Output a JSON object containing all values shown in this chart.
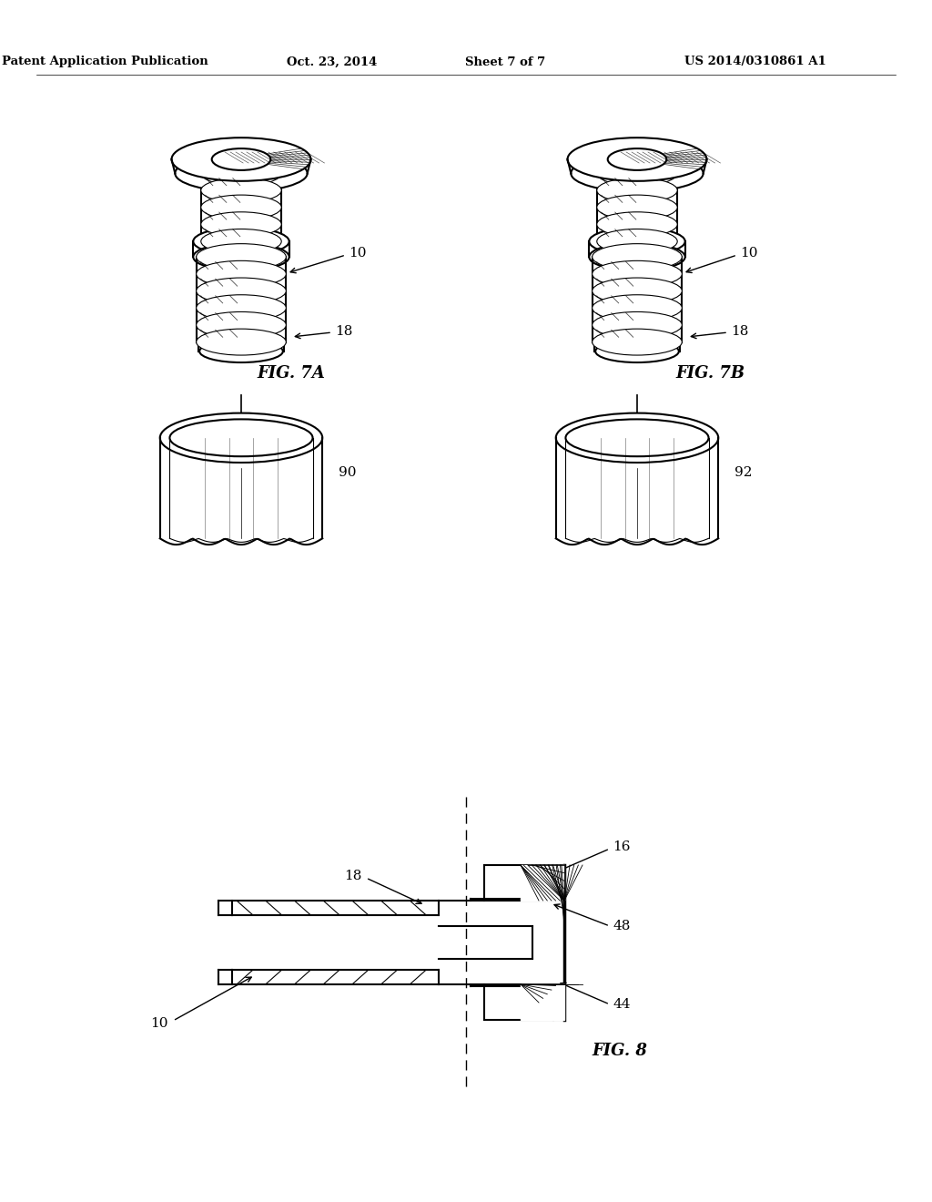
{
  "background_color": "#ffffff",
  "line_color": "#000000",
  "header_text": "Patent Application Publication",
  "header_date": "Oct. 23, 2014",
  "header_sheet": "Sheet 7 of 7",
  "header_patent": "US 2014/0310861 A1",
  "fig7a_label": "FIG. 7A",
  "fig7b_label": "FIG. 7B",
  "fig8_label": "FIG. 8",
  "label_10a": "10",
  "label_18a": "18",
  "label_10b": "10",
  "label_18b": "18",
  "label_90": "90",
  "label_92": "92",
  "label_16": "16",
  "label_48": "48",
  "label_44": "44",
  "label_18c": "18",
  "label_10c": "10"
}
